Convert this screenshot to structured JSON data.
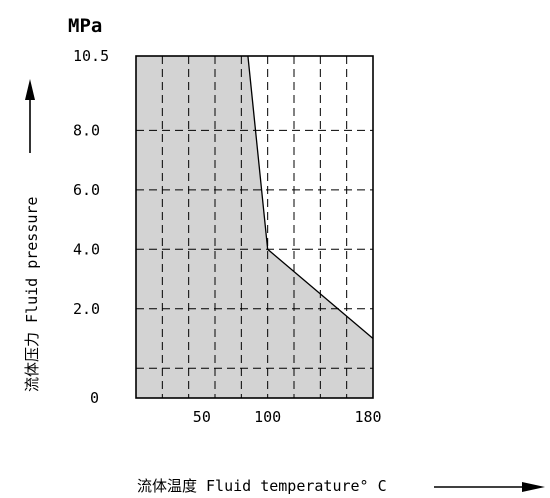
{
  "chart_data": {
    "type": "area",
    "y_unit": "MPa",
    "xlabel": "流体温度 Fluid temperature° C",
    "ylabel": "流体压力 Fluid pressure",
    "x_tick_labels": [
      "50",
      "100",
      "180"
    ],
    "y_tick_labels": [
      "10.5",
      "8.0",
      "6.0",
      "4.0",
      "2.0",
      "0"
    ],
    "xlim": [
      0,
      180
    ],
    "ylim": [
      -1,
      10.5
    ],
    "grid": true,
    "series": [
      {
        "x": [
          0,
          85,
          100,
          180
        ],
        "y": [
          10.5,
          10.5,
          4.0,
          1.0
        ],
        "fill": "#d3d3d3"
      }
    ]
  }
}
